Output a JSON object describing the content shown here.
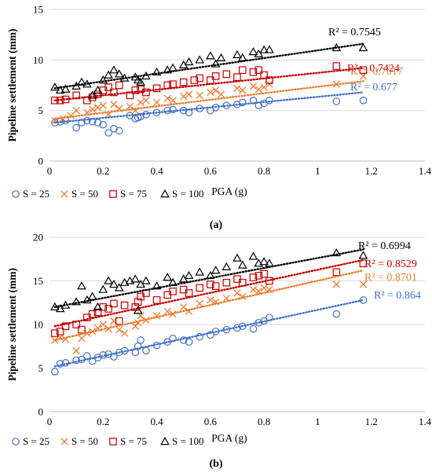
{
  "figure": {
    "panels": [
      {
        "caption": "(a)"
      },
      {
        "caption": "(b)"
      }
    ]
  },
  "colors": {
    "s25": "#4472C4",
    "s50": "#ED7D31",
    "s75": "#C00000",
    "s100": "#000000"
  },
  "chart_data": [
    {
      "type": "scatter",
      "caption": "(a)",
      "xlabel": "PGA (g)",
      "ylabel": "Pipeline settlement (mm)",
      "xlim": [
        0,
        1.4
      ],
      "ylim": [
        0,
        15
      ],
      "xticks": [
        "0",
        "0.2",
        "0.4",
        "0.6",
        "0.8",
        "1",
        "1.2",
        "1.4"
      ],
      "yticks": [
        "0",
        "5",
        "10",
        "15"
      ],
      "grid": "horizontal",
      "legend_position": "bottom",
      "series": [
        {
          "name": "S = 25",
          "marker": "circle",
          "color": "#4472C4",
          "trendline": {
            "x": [
              0.02,
              1.17
            ],
            "y": [
              3.8,
              6.8
            ],
            "r2_label": "R² = 0.677"
          },
          "x": [
            0.02,
            0.04,
            0.06,
            0.1,
            0.12,
            0.14,
            0.16,
            0.18,
            0.2,
            0.22,
            0.24,
            0.26,
            0.3,
            0.32,
            0.33,
            0.34,
            0.36,
            0.4,
            0.44,
            0.46,
            0.5,
            0.52,
            0.56,
            0.6,
            0.62,
            0.66,
            0.7,
            0.72,
            0.76,
            0.78,
            0.8,
            0.82,
            1.07,
            1.17
          ],
          "y": [
            3.8,
            3.9,
            4.0,
            3.3,
            3.8,
            4.0,
            3.9,
            3.8,
            3.6,
            2.8,
            3.2,
            3.0,
            4.5,
            4.2,
            4.3,
            4.4,
            4.6,
            4.8,
            5.0,
            5.1,
            5.0,
            4.8,
            5.2,
            5.0,
            5.3,
            5.5,
            5.6,
            5.8,
            6.0,
            5.5,
            5.7,
            6.0,
            5.9,
            6.0
          ]
        },
        {
          "name": "S = 50",
          "marker": "x",
          "color": "#ED7D31",
          "trendline": {
            "x": [
              0.02,
              1.17
            ],
            "y": [
              4.2,
              7.9
            ],
            "r2_label": "R² = 0.7017"
          },
          "x": [
            0.02,
            0.05,
            0.08,
            0.1,
            0.14,
            0.16,
            0.18,
            0.2,
            0.22,
            0.24,
            0.26,
            0.3,
            0.32,
            0.34,
            0.36,
            0.4,
            0.44,
            0.46,
            0.5,
            0.52,
            0.56,
            0.6,
            0.62,
            0.64,
            0.7,
            0.72,
            0.76,
            0.78,
            0.8,
            0.82,
            1.07,
            1.17
          ],
          "y": [
            4.0,
            4.2,
            4.5,
            5.0,
            4.8,
            5.1,
            5.3,
            5.5,
            4.6,
            5.6,
            5.2,
            5.4,
            5.0,
            5.8,
            6.0,
            5.8,
            6.2,
            6.0,
            6.4,
            6.6,
            6.5,
            6.8,
            7.0,
            6.6,
            7.2,
            7.0,
            7.4,
            7.1,
            7.3,
            7.6,
            7.6,
            8.4
          ]
        },
        {
          "name": "S = 75",
          "marker": "square",
          "color": "#C00000",
          "trendline": {
            "x": [
              0.02,
              1.17
            ],
            "y": [
              6.0,
              9.2
            ],
            "r2_label": "R² = 0.7424"
          },
          "x": [
            0.02,
            0.04,
            0.06,
            0.1,
            0.14,
            0.16,
            0.18,
            0.2,
            0.22,
            0.24,
            0.26,
            0.3,
            0.32,
            0.34,
            0.36,
            0.4,
            0.44,
            0.46,
            0.5,
            0.54,
            0.56,
            0.6,
            0.62,
            0.66,
            0.7,
            0.72,
            0.76,
            0.78,
            0.8,
            0.82,
            1.07,
            1.17
          ],
          "y": [
            6.0,
            6.0,
            6.1,
            6.5,
            6.0,
            6.3,
            6.6,
            7.0,
            7.3,
            6.8,
            7.5,
            6.5,
            7.0,
            7.1,
            6.8,
            7.2,
            7.5,
            7.6,
            7.8,
            8.0,
            8.2,
            8.0,
            8.4,
            8.6,
            8.3,
            9.0,
            8.8,
            9.0,
            8.5,
            8.0,
            9.4,
            9.0
          ]
        },
        {
          "name": "S = 100",
          "marker": "triangle",
          "color": "#000000",
          "trendline": {
            "x": [
              0.02,
              1.17
            ],
            "y": [
              7.2,
              11.6
            ],
            "r2_label": "R² = 0.7545"
          },
          "x": [
            0.02,
            0.04,
            0.06,
            0.1,
            0.12,
            0.14,
            0.16,
            0.18,
            0.2,
            0.22,
            0.24,
            0.26,
            0.28,
            0.32,
            0.33,
            0.34,
            0.36,
            0.4,
            0.44,
            0.46,
            0.5,
            0.52,
            0.56,
            0.6,
            0.62,
            0.64,
            0.7,
            0.72,
            0.76,
            0.78,
            0.8,
            0.82,
            1.07,
            1.17
          ],
          "y": [
            7.3,
            7.0,
            7.1,
            7.4,
            7.8,
            7.6,
            6.5,
            7.0,
            8.0,
            8.5,
            9.0,
            8.6,
            8.2,
            8.3,
            8.0,
            7.8,
            8.4,
            8.8,
            9.0,
            9.2,
            9.5,
            9.8,
            10.0,
            10.4,
            9.6,
            10.2,
            10.5,
            10.2,
            10.8,
            10.6,
            11.0,
            11.0,
            11.2,
            11.2
          ]
        }
      ]
    },
    {
      "type": "scatter",
      "caption": "(b)",
      "xlabel": "PGA (g)",
      "ylabel": "Pipeline settlement (mm)",
      "xlim": [
        0,
        1.4
      ],
      "ylim": [
        0,
        20
      ],
      "xticks": [
        "0",
        "0.2",
        "0.4",
        "0.6",
        "0.8",
        "1",
        "1.2",
        "1.4"
      ],
      "yticks": [
        "0",
        "5",
        "10",
        "15",
        "20"
      ],
      "grid": "horizontal",
      "legend_position": "bottom",
      "series": [
        {
          "name": "S = 25",
          "marker": "circle",
          "color": "#4472C4",
          "trendline": {
            "x": [
              0.02,
              1.17
            ],
            "y": [
              5.2,
              12.8
            ],
            "r2_label": "R² = 0.864"
          },
          "x": [
            0.02,
            0.04,
            0.06,
            0.1,
            0.12,
            0.14,
            0.16,
            0.18,
            0.2,
            0.22,
            0.24,
            0.26,
            0.28,
            0.32,
            0.33,
            0.34,
            0.36,
            0.4,
            0.44,
            0.46,
            0.5,
            0.52,
            0.56,
            0.6,
            0.62,
            0.66,
            0.7,
            0.72,
            0.76,
            0.78,
            0.8,
            0.82,
            1.07,
            1.17
          ],
          "y": [
            4.6,
            5.5,
            5.6,
            5.9,
            6.0,
            6.4,
            5.8,
            6.2,
            6.5,
            6.6,
            6.3,
            6.8,
            7.0,
            6.8,
            7.5,
            8.2,
            7.0,
            7.6,
            8.0,
            8.4,
            8.2,
            8.0,
            8.6,
            8.8,
            9.2,
            9.4,
            9.6,
            9.8,
            9.5,
            10.2,
            10.4,
            10.8,
            11.2,
            12.8
          ]
        },
        {
          "name": "S = 50",
          "marker": "x",
          "color": "#ED7D31",
          "trendline": {
            "x": [
              0.02,
              1.17
            ],
            "y": [
              8.2,
              16.2
            ],
            "r2_label": "R² = 0.8701"
          },
          "x": [
            0.02,
            0.04,
            0.06,
            0.1,
            0.12,
            0.14,
            0.16,
            0.18,
            0.2,
            0.22,
            0.24,
            0.26,
            0.28,
            0.32,
            0.33,
            0.34,
            0.36,
            0.4,
            0.44,
            0.46,
            0.5,
            0.52,
            0.56,
            0.6,
            0.62,
            0.66,
            0.7,
            0.72,
            0.76,
            0.78,
            0.8,
            0.82,
            1.07,
            1.17
          ],
          "y": [
            8.2,
            8.5,
            8.3,
            7.0,
            8.4,
            9.0,
            9.2,
            9.6,
            10.0,
            9.5,
            10.4,
            9.4,
            9.0,
            9.8,
            10.2,
            11.0,
            10.5,
            11.0,
            11.5,
            11.2,
            12.0,
            11.5,
            12.4,
            12.8,
            12.6,
            13.0,
            13.6,
            13.2,
            14.0,
            13.8,
            14.2,
            14.0,
            14.6,
            14.6
          ]
        },
        {
          "name": "S = 75",
          "marker": "square",
          "color": "#C00000",
          "trendline": {
            "x": [
              0.02,
              1.17
            ],
            "y": [
              9.8,
              17.4
            ],
            "r2_label": "R² = 0.8529"
          },
          "x": [
            0.02,
            0.04,
            0.06,
            0.1,
            0.12,
            0.14,
            0.16,
            0.18,
            0.2,
            0.22,
            0.24,
            0.26,
            0.28,
            0.32,
            0.33,
            0.34,
            0.36,
            0.4,
            0.44,
            0.46,
            0.5,
            0.52,
            0.56,
            0.6,
            0.62,
            0.66,
            0.7,
            0.72,
            0.76,
            0.78,
            0.8,
            0.82,
            1.07,
            1.17
          ],
          "y": [
            9.0,
            9.2,
            9.8,
            10.0,
            9.4,
            10.8,
            11.2,
            11.4,
            12.0,
            11.8,
            12.4,
            10.4,
            12.2,
            12.0,
            12.6,
            13.2,
            13.6,
            12.8,
            13.4,
            13.8,
            14.0,
            13.6,
            14.2,
            14.6,
            14.4,
            14.8,
            15.2,
            14.8,
            15.4,
            15.6,
            15.8,
            15.0,
            16.0,
            17.0
          ]
        },
        {
          "name": "S = 100",
          "marker": "triangle",
          "color": "#000000",
          "trendline": {
            "x": [
              0.02,
              1.17
            ],
            "y": [
              12.0,
              18.6
            ],
            "r2_label": "R² = 0.6994"
          },
          "x": [
            0.02,
            0.04,
            0.06,
            0.1,
            0.12,
            0.14,
            0.16,
            0.18,
            0.2,
            0.22,
            0.24,
            0.26,
            0.28,
            0.3,
            0.32,
            0.33,
            0.34,
            0.36,
            0.4,
            0.44,
            0.46,
            0.5,
            0.52,
            0.56,
            0.6,
            0.62,
            0.66,
            0.7,
            0.72,
            0.76,
            0.78,
            0.8,
            0.82,
            1.07,
            1.17
          ],
          "y": [
            12.0,
            11.8,
            12.2,
            12.6,
            14.4,
            12.8,
            13.2,
            12.0,
            14.0,
            15.0,
            14.6,
            14.2,
            14.8,
            15.0,
            15.2,
            11.6,
            14.6,
            15.0,
            14.4,
            15.4,
            14.8,
            15.2,
            15.6,
            16.0,
            15.6,
            16.2,
            16.6,
            17.6,
            16.8,
            17.8,
            17.0,
            17.2,
            17.0,
            18.2,
            17.9
          ]
        }
      ]
    }
  ]
}
